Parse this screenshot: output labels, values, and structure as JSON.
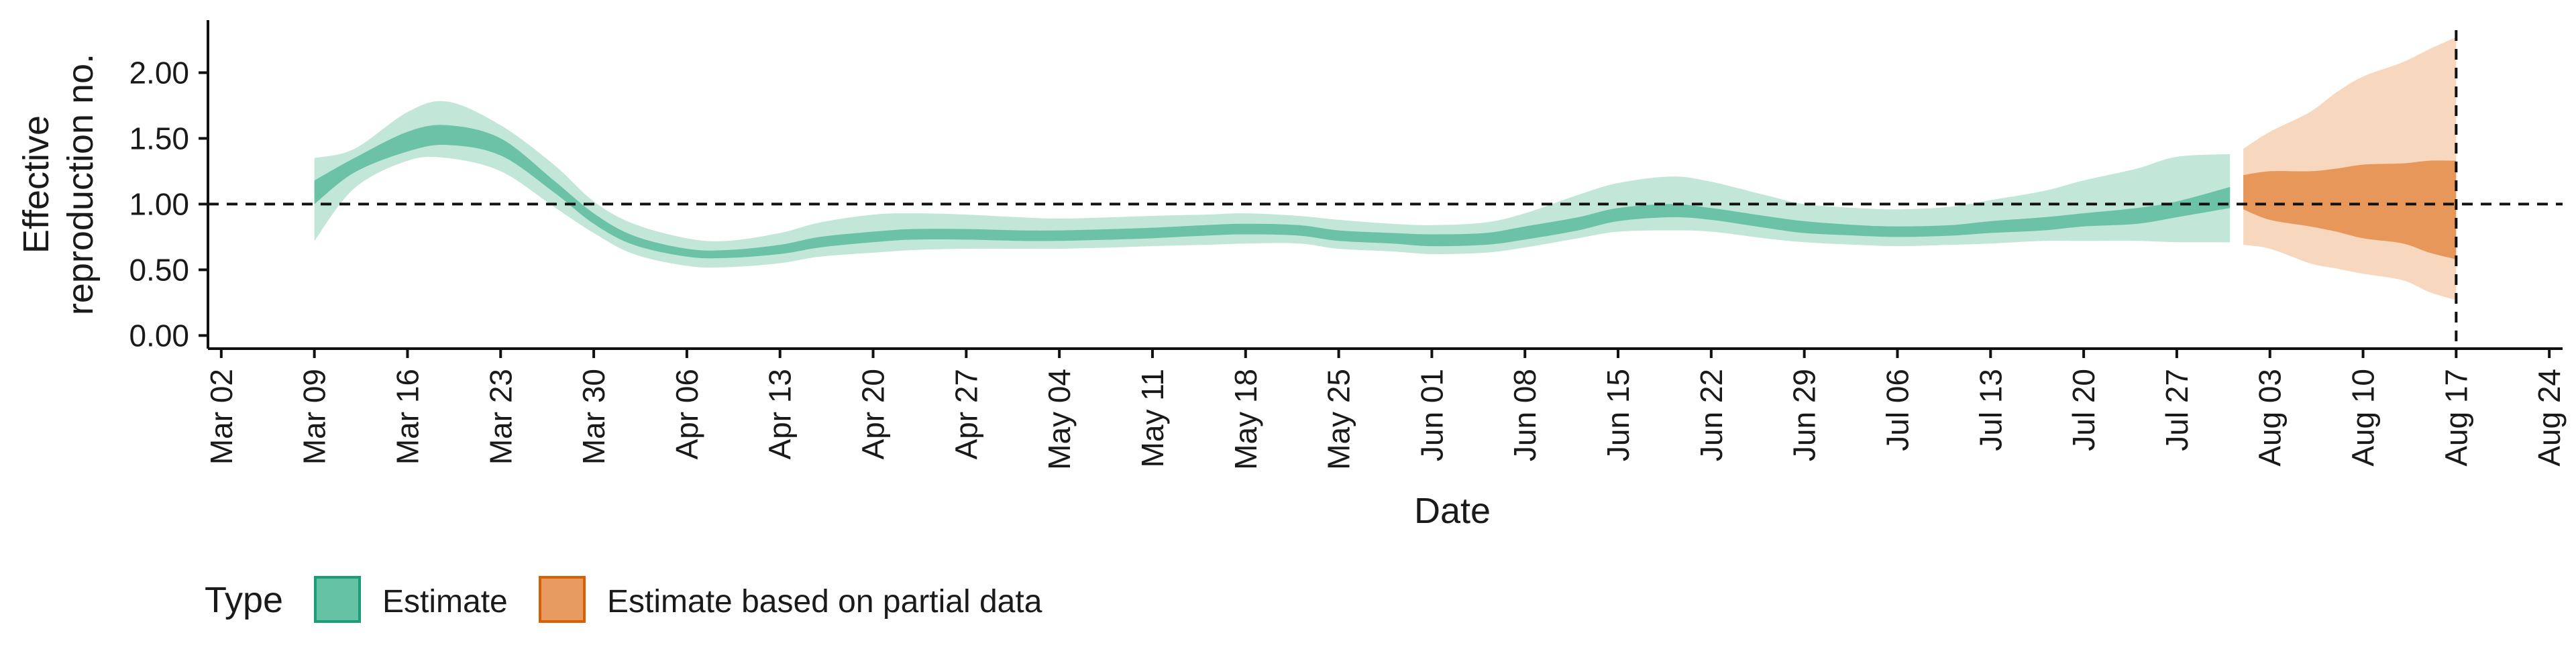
{
  "chart_data": {
    "type": "area",
    "xlabel": "Date",
    "ylabel_lines": [
      "Effective",
      "reproduction no."
    ],
    "x_ticks": [
      "Mar 02",
      "Mar 09",
      "Mar 16",
      "Mar 23",
      "Mar 30",
      "Apr 06",
      "Apr 13",
      "Apr 20",
      "Apr 27",
      "May 04",
      "May 11",
      "May 18",
      "May 25",
      "Jun 01",
      "Jun 08",
      "Jun 15",
      "Jun 22",
      "Jun 29",
      "Jul 06",
      "Jul 13",
      "Jul 20",
      "Jul 27",
      "Aug 03",
      "Aug 10",
      "Aug 17",
      "Aug 24"
    ],
    "y_ticks": [
      "0.00",
      "0.50",
      "1.00",
      "1.50",
      "2.00"
    ],
    "ylim": [
      -0.1,
      2.4
    ],
    "xlim_days_note": "x axis spans Mar 01 to Aug 25",
    "reference_lines": {
      "horizontal_y": 1.0,
      "vertical_x": "Aug 17"
    },
    "grid": false,
    "legend": {
      "position": "bottom-left",
      "title": "Type",
      "entries": [
        {
          "label": "Estimate",
          "color": "#66c2a5",
          "border": "#1b9e77"
        },
        {
          "label": "Estimate based on partial data",
          "color": "#e89b60",
          "border": "#d95f02"
        }
      ]
    },
    "colors": {
      "estimate_outer": "#c2e6d8",
      "estimate_inner": "#6cc2a6",
      "partial_outer": "#f7d7bd",
      "partial_inner": "#e8975a"
    },
    "series": [
      {
        "name": "Estimate",
        "x": [
          "Mar 09",
          "Mar 12",
          "Mar 16",
          "Mar 19",
          "Mar 23",
          "Mar 27",
          "Mar 30",
          "Apr 02",
          "Apr 06",
          "Apr 09",
          "Apr 13",
          "Apr 16",
          "Apr 20",
          "Apr 23",
          "Apr 27",
          "May 01",
          "May 04",
          "May 08",
          "May 11",
          "May 15",
          "May 18",
          "May 22",
          "May 25",
          "May 29",
          "Jun 01",
          "Jun 05",
          "Jun 08",
          "Jun 12",
          "Jun 15",
          "Jun 19",
          "Jun 22",
          "Jun 26",
          "Jun 29",
          "Jul 03",
          "Jul 06",
          "Jul 10",
          "Jul 13",
          "Jul 17",
          "Jul 20",
          "Jul 24",
          "Jul 27",
          "Jul 31"
        ],
        "lower_90": [
          0.72,
          1.12,
          1.33,
          1.35,
          1.25,
          0.98,
          0.78,
          0.62,
          0.53,
          0.52,
          0.55,
          0.6,
          0.63,
          0.65,
          0.66,
          0.66,
          0.66,
          0.67,
          0.68,
          0.69,
          0.7,
          0.7,
          0.66,
          0.64,
          0.62,
          0.63,
          0.67,
          0.74,
          0.79,
          0.8,
          0.79,
          0.74,
          0.71,
          0.69,
          0.68,
          0.69,
          0.7,
          0.72,
          0.72,
          0.72,
          0.71,
          0.71
        ],
        "lower_50": [
          1.0,
          1.24,
          1.4,
          1.45,
          1.37,
          1.09,
          0.85,
          0.69,
          0.6,
          0.59,
          0.62,
          0.67,
          0.71,
          0.73,
          0.73,
          0.72,
          0.72,
          0.73,
          0.74,
          0.76,
          0.77,
          0.76,
          0.72,
          0.7,
          0.68,
          0.69,
          0.73,
          0.8,
          0.87,
          0.9,
          0.88,
          0.82,
          0.78,
          0.76,
          0.75,
          0.76,
          0.78,
          0.8,
          0.83,
          0.85,
          0.9,
          0.97
        ],
        "upper_50": [
          1.18,
          1.35,
          1.55,
          1.6,
          1.5,
          1.18,
          0.93,
          0.76,
          0.66,
          0.65,
          0.69,
          0.75,
          0.79,
          0.81,
          0.81,
          0.8,
          0.8,
          0.81,
          0.82,
          0.84,
          0.85,
          0.84,
          0.8,
          0.78,
          0.77,
          0.78,
          0.83,
          0.9,
          0.97,
          1.0,
          0.97,
          0.91,
          0.87,
          0.84,
          0.83,
          0.84,
          0.87,
          0.9,
          0.93,
          0.97,
          1.02,
          1.13
        ],
        "upper_90": [
          1.35,
          1.42,
          1.7,
          1.78,
          1.6,
          1.3,
          1.02,
          0.85,
          0.74,
          0.72,
          0.78,
          0.86,
          0.92,
          0.93,
          0.92,
          0.9,
          0.89,
          0.9,
          0.91,
          0.92,
          0.93,
          0.91,
          0.88,
          0.85,
          0.84,
          0.86,
          0.93,
          1.07,
          1.16,
          1.21,
          1.17,
          1.07,
          1.0,
          0.97,
          0.96,
          0.98,
          1.03,
          1.1,
          1.18,
          1.27,
          1.36,
          1.38
        ]
      },
      {
        "name": "Estimate based on partial data",
        "x": [
          "Aug 01",
          "Aug 03",
          "Aug 06",
          "Aug 08",
          "Aug 10",
          "Aug 13",
          "Aug 15",
          "Aug 17"
        ],
        "lower_90": [
          0.69,
          0.66,
          0.55,
          0.51,
          0.47,
          0.42,
          0.33,
          0.27
        ],
        "lower_50": [
          0.96,
          0.88,
          0.83,
          0.79,
          0.74,
          0.7,
          0.63,
          0.58
        ],
        "upper_50": [
          1.22,
          1.25,
          1.25,
          1.27,
          1.3,
          1.31,
          1.33,
          1.33
        ],
        "upper_90": [
          1.42,
          1.55,
          1.7,
          1.85,
          1.97,
          2.08,
          2.18,
          2.27
        ]
      }
    ]
  }
}
